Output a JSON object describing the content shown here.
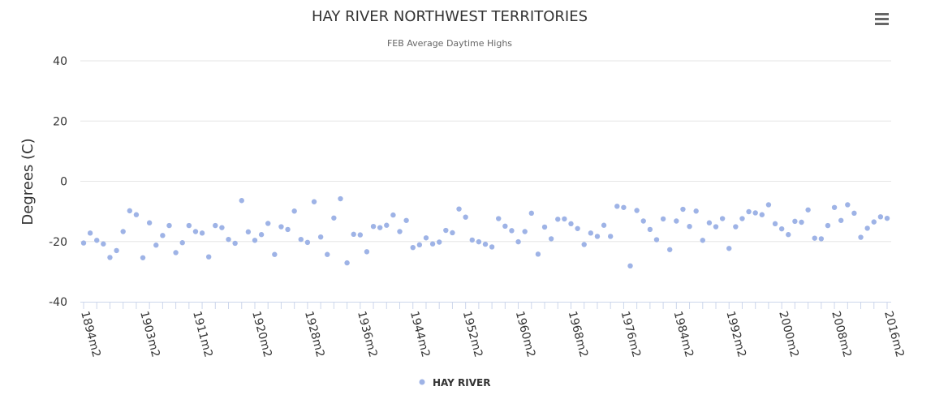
{
  "chart_data": {
    "type": "scatter",
    "title": "HAY RIVER NORTHWEST TERRITORIES",
    "subtitle": "FEB Average Daytime Highs",
    "ylabel": "Degrees (C)",
    "xlabel": "",
    "ylim": [
      -40,
      40
    ],
    "y_ticks": [
      40,
      20,
      0,
      -20,
      -40
    ],
    "x_start_year": 1894,
    "x_tick_labels": [
      "1894m2",
      "1903m2",
      "1911m2",
      "1920m2",
      "1928m2",
      "1936m2",
      "1944m2",
      "1952m2",
      "1960m2",
      "1968m2",
      "1976m2",
      "1984m2",
      "1992m2",
      "2000m2",
      "2008m2",
      "2016m2"
    ],
    "grid": true,
    "legend_position": "bottom-center",
    "marker_color": "#9eb3e6",
    "series": [
      {
        "name": "HAY RIVER",
        "values": [
          -20.5,
          -17.2,
          -19.6,
          -20.8,
          -25.3,
          -23.0,
          -16.7,
          -9.8,
          -11.1,
          -25.4,
          -13.8,
          -21.2,
          -18.0,
          -14.7,
          -23.7,
          -20.4,
          -14.7,
          -16.7,
          -17.2,
          -25.1,
          -14.7,
          -15.4,
          -19.3,
          -20.6,
          -6.4,
          -16.8,
          -19.6,
          -17.7,
          -14.0,
          -24.3,
          -15.1,
          -16.0,
          -9.9,
          -19.3,
          -20.3,
          -6.8,
          -18.5,
          -24.3,
          -12.2,
          -5.8,
          -27.1,
          -17.6,
          -17.8,
          -23.4,
          -15.0,
          -15.4,
          -14.6,
          -11.2,
          -16.7,
          -13.0,
          -22.0,
          -21.1,
          -18.8,
          -20.8,
          -20.2,
          -16.3,
          -17.1,
          -9.2,
          -11.9,
          -19.5,
          -20.1,
          -20.9,
          -21.8,
          -12.4,
          -14.9,
          -16.4,
          -20.1,
          -16.7,
          -10.6,
          -24.2,
          -15.2,
          -19.1,
          -12.6,
          -12.5,
          -14.1,
          -15.7,
          -21.0,
          -17.2,
          -18.3,
          -14.6,
          -18.3,
          -8.3,
          -8.7,
          -28.1,
          -9.7,
          -13.2,
          -16.0,
          -19.4,
          -12.5,
          -22.7,
          -13.2,
          -9.3,
          -15.0,
          -9.9,
          -19.6,
          -13.8,
          -15.1,
          -12.4,
          -22.3,
          -15.1,
          -12.4,
          -10.1,
          -10.5,
          -11.1,
          -7.8,
          -14.1,
          -15.8,
          -17.7,
          -13.3,
          -13.6,
          -9.5,
          -18.9,
          -19.1,
          -14.7,
          -8.7,
          -13.0,
          -7.8,
          -10.6,
          -18.6,
          -15.6,
          -13.5,
          -11.8,
          -12.3
        ]
      }
    ]
  },
  "toolbar": {
    "menu_icon": "hamburger-menu-icon"
  }
}
